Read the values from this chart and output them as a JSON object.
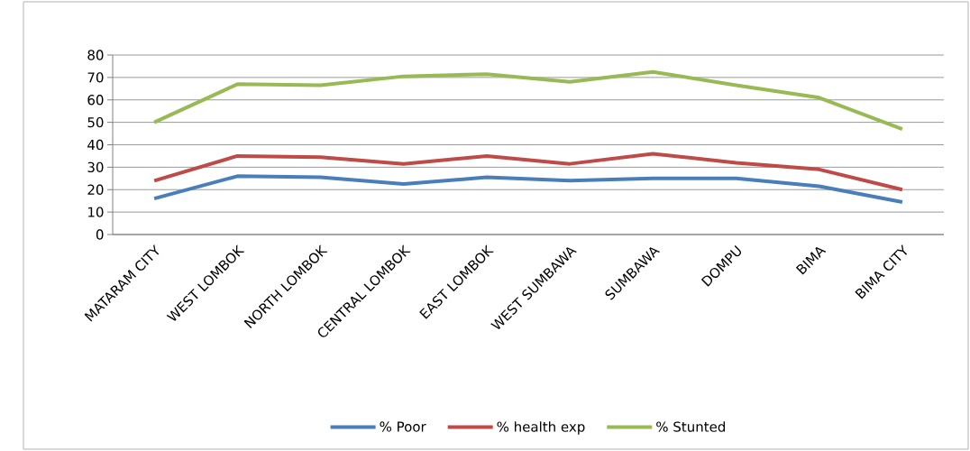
{
  "chart_data": {
    "type": "line",
    "categories": [
      "MATARAM CITY",
      "WEST LOMBOK",
      "NORTH LOMBOK",
      "CENTRAL LOMBOK",
      "EAST LOMBOK",
      "WEST SUMBAWA",
      "SUMBAWA",
      "DOMPU",
      "BIMA",
      "BIMA CITY"
    ],
    "series": [
      {
        "name": "% Poor",
        "color": "#4a7ebb",
        "values": [
          16,
          26,
          25.5,
          22.5,
          25.5,
          24,
          25,
          25,
          21.5,
          14.5
        ]
      },
      {
        "name": "% health exp",
        "color": "#be4b48",
        "values": [
          24,
          35,
          34.5,
          31.5,
          35,
          31.5,
          36,
          32,
          29,
          20
        ]
      },
      {
        "name": "% Stunted",
        "color": "#98b954",
        "values": [
          50,
          67,
          66.5,
          70.5,
          71.5,
          68,
          72.5,
          66.5,
          61,
          47
        ]
      }
    ],
    "ylim": [
      0,
      80
    ],
    "yticks": [
      0,
      10,
      20,
      30,
      40,
      50,
      60,
      70,
      80
    ],
    "grid": "y",
    "legend": "bottom",
    "marker": "none",
    "line_style": "solid"
  }
}
